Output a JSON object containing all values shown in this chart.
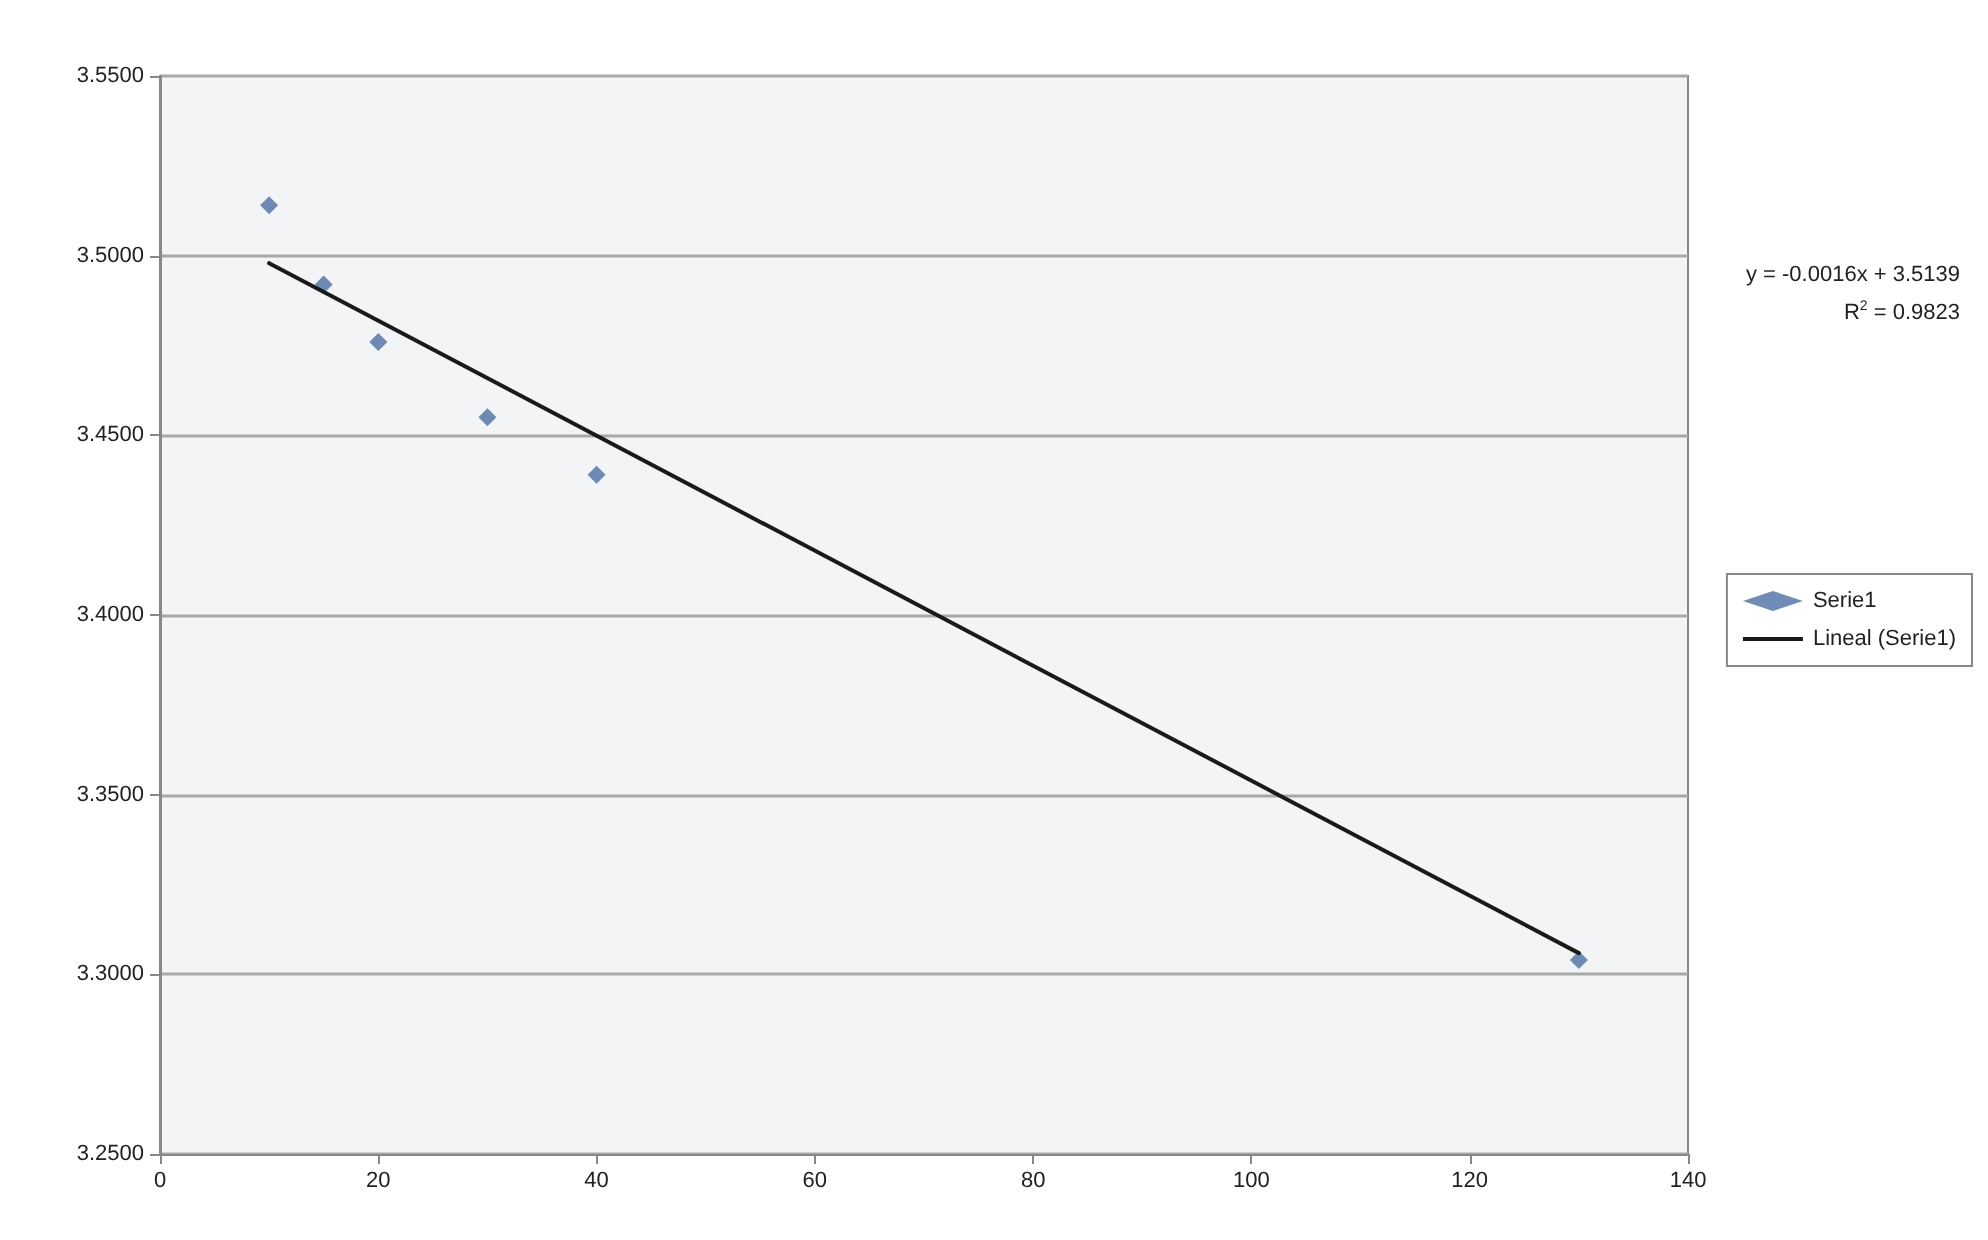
{
  "chart_data": {
    "type": "scatter",
    "x": [
      10,
      15,
      20,
      30,
      40,
      130
    ],
    "series": [
      {
        "name": "Serie1",
        "color": "#4a6fa5",
        "marker": "diamond",
        "values": [
          3.514,
          3.492,
          3.476,
          3.455,
          3.439,
          3.304
        ]
      },
      {
        "name": "Lineal (Serie1)",
        "color": "#1a1a1a",
        "type": "line",
        "marker": "none",
        "line_style": "solid",
        "x": [
          10,
          130
        ],
        "values": [
          3.4979,
          3.3059
        ]
      }
    ],
    "xlim": [
      0,
      140
    ],
    "xticks": [
      0,
      20,
      40,
      60,
      80,
      100,
      120,
      140
    ],
    "ylim": [
      3.25,
      3.55
    ],
    "yticks": [
      {
        "value": 3.25,
        "label": "3.2500"
      },
      {
        "value": 3.3,
        "label": "3.3000"
      },
      {
        "value": 3.35,
        "label": "3.3500"
      },
      {
        "value": 3.4,
        "label": "3.4000"
      },
      {
        "value": 3.45,
        "label": "3.4500"
      },
      {
        "value": 3.5,
        "label": "3.5000"
      },
      {
        "value": 3.55,
        "label": "3.5500"
      }
    ],
    "grid": "y",
    "legend": "right",
    "annotations": [
      "y = -0.0016x + 3.5139",
      "R$^{2}$ = 0.9823"
    ]
  }
}
